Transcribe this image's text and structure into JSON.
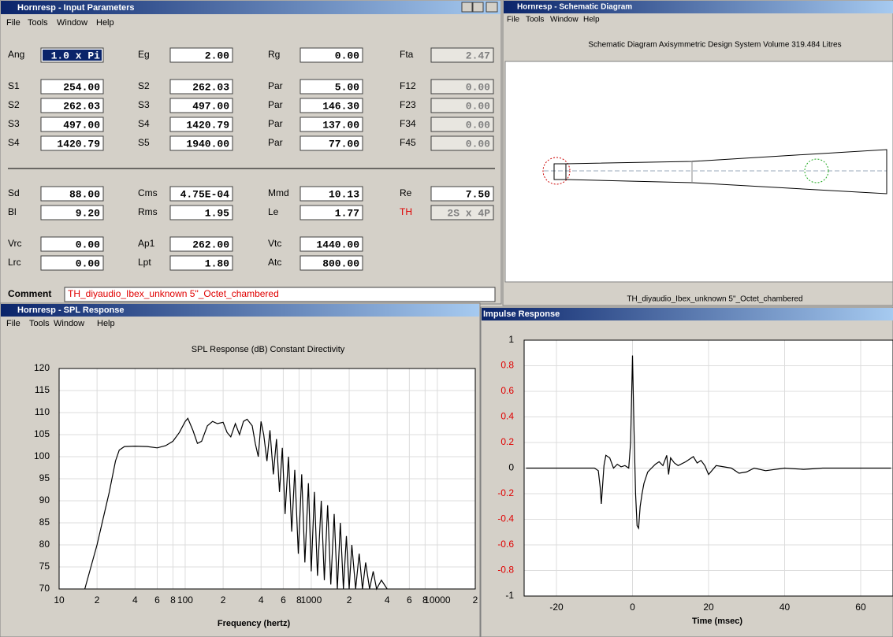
{
  "windows": {
    "input": {
      "title": "Hornresp - Input Parameters",
      "menu": [
        "File",
        "Tools",
        "Window",
        "Help"
      ],
      "rows": [
        [
          {
            "label": "Ang",
            "value": "1.0 x Pi"
          },
          {
            "label": "Eg",
            "value": "2.00"
          },
          {
            "label": "Rg",
            "value": "0.00"
          },
          {
            "label": "Fta",
            "value": "2.47"
          }
        ],
        [
          {
            "label": "S1",
            "value": "254.00"
          },
          {
            "label": "S2",
            "value": "262.03"
          },
          {
            "label": "Par",
            "value": "5.00"
          },
          {
            "label": "F12",
            "value": "0.00"
          }
        ],
        [
          {
            "label": "S2",
            "value": "262.03"
          },
          {
            "label": "S3",
            "value": "497.00"
          },
          {
            "label": "Par",
            "value": "146.30"
          },
          {
            "label": "F23",
            "value": "0.00"
          }
        ],
        [
          {
            "label": "S3",
            "value": "497.00"
          },
          {
            "label": "S4",
            "value": "1420.79"
          },
          {
            "label": "Par",
            "value": "137.00"
          },
          {
            "label": "F34",
            "value": "0.00"
          }
        ],
        [
          {
            "label": "S4",
            "value": "1420.79"
          },
          {
            "label": "S5",
            "value": "1940.00"
          },
          {
            "label": "Par",
            "value": "77.00"
          },
          {
            "label": "F45",
            "value": "0.00"
          }
        ],
        [
          {
            "label": "Sd",
            "value": "88.00"
          },
          {
            "label": "Cms",
            "value": "4.75E-04"
          },
          {
            "label": "Mmd",
            "value": "10.13"
          },
          {
            "label": "Re",
            "value": "7.50"
          }
        ],
        [
          {
            "label": "Bl",
            "value": "9.20"
          },
          {
            "label": "Rms",
            "value": "1.95"
          },
          {
            "label": "Le",
            "value": "1.77"
          },
          {
            "label": "TH",
            "value": "2S x 4P"
          }
        ],
        [
          {
            "label": "Vrc",
            "value": "0.00"
          },
          {
            "label": "Ap1",
            "value": "262.00"
          },
          {
            "label": "Vtc",
            "value": "1440.00"
          }
        ],
        [
          {
            "label": "Lrc",
            "value": "0.00"
          },
          {
            "label": "Lpt",
            "value": "1.80"
          },
          {
            "label": "Atc",
            "value": "800.00"
          }
        ]
      ],
      "comment_label": "Comment",
      "comment": "TH_diyaudio_Ibex_unknown 5\"_Octet_chambered"
    },
    "schematic": {
      "title": "Hornresp - Schematic Diagram",
      "menu": [
        "File",
        "Tools",
        "Window",
        "Help"
      ],
      "heading": "Schematic Diagram   Axisymmetric Design   System Volume 319.484 Litres",
      "caption": "TH_diyaudio_Ibex_unknown 5\"_Octet_chambered"
    },
    "spl": {
      "title": "Hornresp - SPL Response",
      "menu": [
        "File",
        "Tools",
        "Window",
        "Help"
      ]
    },
    "impulse": {
      "title": "Impulse Response"
    }
  },
  "chart_data": [
    {
      "type": "line",
      "title": "SPL Response (dB)   Constant Directivity",
      "x_label": "Frequency (hertz)",
      "log_x": true,
      "grid": true,
      "x": [
        16,
        20,
        25,
        28,
        30,
        33,
        40,
        50,
        60,
        70,
        80,
        90,
        100,
        105,
        115,
        125,
        135,
        150,
        165,
        180,
        200,
        215,
        230,
        250,
        270,
        290,
        310,
        340,
        360,
        380,
        400,
        420,
        445,
        470,
        500,
        530,
        560,
        590,
        620,
        660,
        700,
        740,
        790,
        840,
        890,
        950,
        1000,
        1060,
        1120,
        1200,
        1270,
        1350,
        1430,
        1520,
        1610,
        1700,
        1800,
        1900,
        2000,
        2100,
        2250,
        2400,
        2550,
        2700,
        2900,
        3100,
        3300,
        3600,
        4000
      ],
      "series": [
        {
          "color": "#000000",
          "values": [
            70,
            80,
            92,
            99,
            101.5,
            102.3,
            102.4,
            102.3,
            102,
            102.5,
            103.5,
            105.5,
            108,
            108.7,
            106,
            103,
            103.5,
            107,
            108,
            107.5,
            107.8,
            105.5,
            104.5,
            107.5,
            105,
            108,
            108.5,
            107,
            103,
            100,
            108,
            105,
            99,
            106,
            96,
            104,
            92,
            102,
            87,
            100,
            83,
            97,
            78,
            96,
            76,
            94,
            74,
            92,
            73,
            90,
            72,
            89,
            71,
            87,
            70,
            85,
            70,
            82,
            70,
            80,
            70,
            78,
            70,
            76,
            70,
            74,
            70,
            72,
            70
          ]
        }
      ],
      "xlim": [
        10,
        20000
      ],
      "ylim": [
        70,
        120
      ],
      "xticks": [
        10,
        {
          "value": 20,
          "label": "2"
        },
        {
          "value": 40,
          "label": "4"
        },
        {
          "value": 60,
          "label": "6"
        },
        {
          "value": 80,
          "label": "8"
        },
        100,
        {
          "value": 200,
          "label": "2"
        },
        {
          "value": 400,
          "label": "4"
        },
        {
          "value": 600,
          "label": "6"
        },
        {
          "value": 800,
          "label": "8"
        },
        1000,
        {
          "value": 2000,
          "label": "2"
        },
        {
          "value": 4000,
          "label": "4"
        },
        {
          "value": 6000,
          "label": "6"
        },
        {
          "value": 8000,
          "label": "8"
        },
        10000,
        {
          "value": 20000,
          "label": "2"
        }
      ],
      "yticks": [
        70,
        75,
        80,
        85,
        90,
        95,
        100,
        105,
        110,
        115,
        120
      ]
    },
    {
      "type": "line",
      "x_label": "Time (msec)",
      "grid": true,
      "x": [
        -28,
        -12,
        -10,
        -9,
        -8.5,
        -8.2,
        -7.5,
        -7,
        -6,
        -5,
        -4,
        -3,
        -2,
        -1,
        -0.5,
        0,
        0.4,
        0.8,
        1.2,
        1.6,
        2,
        2.5,
        3,
        4,
        5,
        6,
        7,
        8,
        9,
        9.5,
        10,
        11,
        12,
        14,
        16,
        17,
        18,
        19,
        20,
        22,
        24,
        26,
        28,
        30,
        32,
        35,
        40,
        45,
        50,
        55,
        60,
        68
      ],
      "series": [
        {
          "color": "#000000",
          "values": [
            0,
            0,
            0,
            -0.02,
            -0.15,
            -0.28,
            0.02,
            0.1,
            0.08,
            0,
            0.03,
            0.01,
            0.02,
            0,
            0.2,
            0.88,
            0.3,
            -0.2,
            -0.45,
            -0.47,
            -0.3,
            -0.2,
            -0.12,
            -0.03,
            0,
            0.03,
            0.05,
            0.02,
            0.1,
            -0.05,
            0.08,
            0.04,
            0.02,
            0.05,
            0.09,
            0.04,
            0.06,
            0.02,
            -0.05,
            0.02,
            0.01,
            0,
            -0.04,
            -0.03,
            0,
            -0.02,
            0,
            -0.01,
            0,
            0,
            0,
            0
          ]
        }
      ],
      "xlim": [
        -28.5,
        68.5
      ],
      "ylim": [
        -1,
        1
      ],
      "xticks": [
        -20,
        0,
        20,
        40,
        60
      ],
      "yticks": [
        1,
        0.8,
        0.6,
        0.4,
        0.2,
        0,
        -0.2,
        -0.4,
        -0.6,
        -0.8,
        -1
      ]
    }
  ]
}
